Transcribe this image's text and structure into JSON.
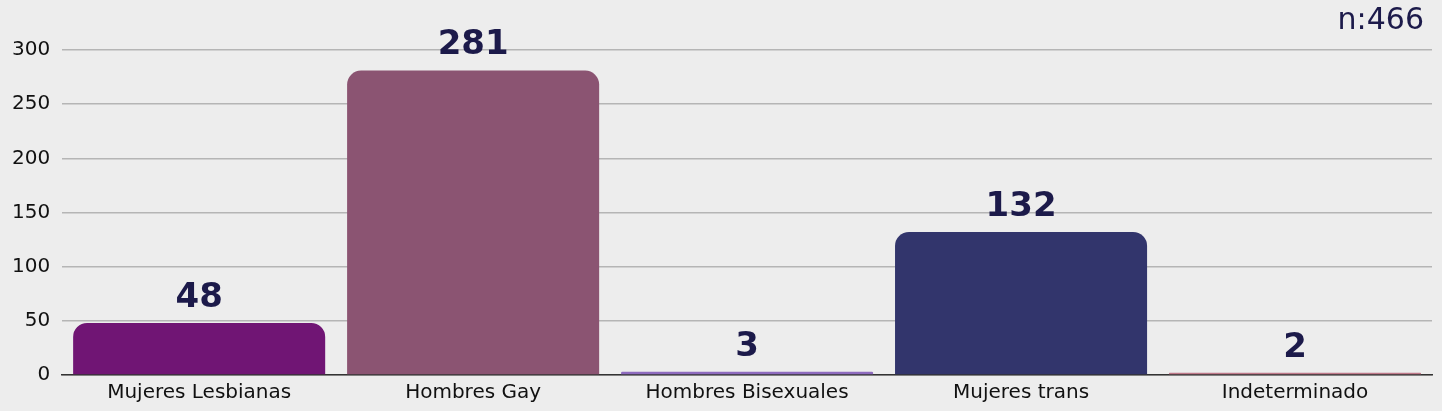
{
  "chart_data": {
    "type": "bar",
    "categories": [
      "Mujeres Lesbianas",
      "Hombres Gay",
      "Hombres Bisexuales",
      "Mujeres trans",
      "Indeterminado"
    ],
    "values": [
      48,
      281,
      3,
      132,
      2
    ],
    "colors": [
      "#701574",
      "#8b5472",
      "#8e6bbf",
      "#32356c",
      "#c07a8a"
    ],
    "ylim": [
      0,
      300
    ],
    "yticks": [
      0,
      50,
      100,
      150,
      200,
      250,
      300
    ],
    "grid": "y",
    "data_labels": true,
    "legend": false,
    "annotations": [
      "n:466"
    ]
  }
}
